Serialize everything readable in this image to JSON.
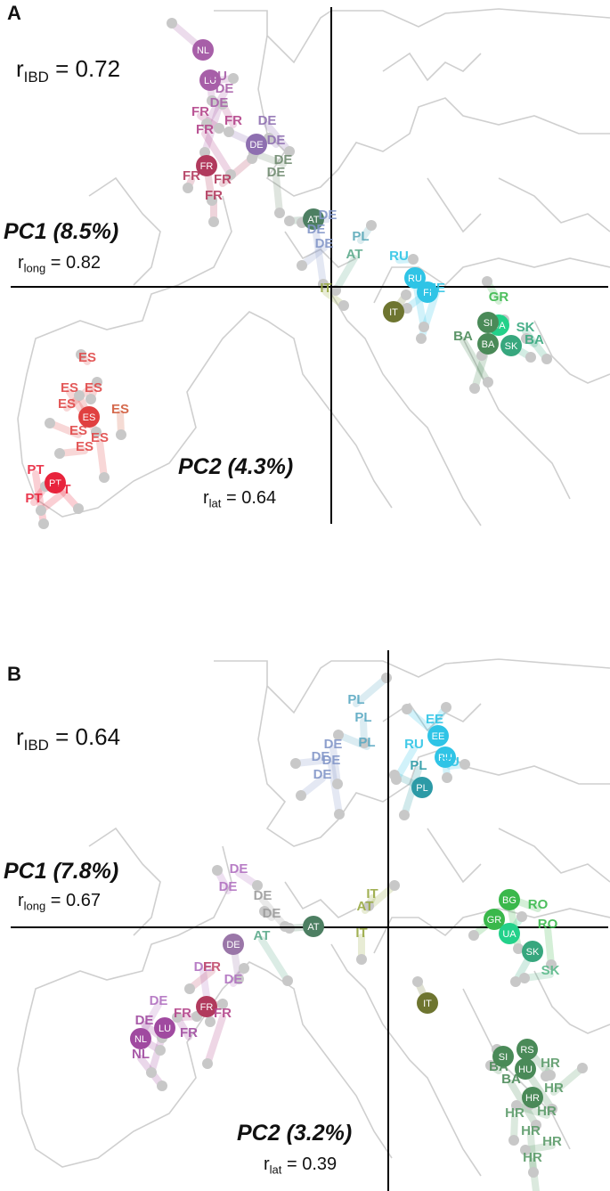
{
  "chart_data": [
    {
      "type": "scatter",
      "panel_label": "A",
      "r_ibd": "0.72",
      "pc1": "PC1 (8.5%)",
      "r_long": "0.82",
      "pc2": "PC2 (4.3%)",
      "r_lat": "0.64",
      "xlim": [
        0,
        685
      ],
      "ylim": [
        0,
        640
      ],
      "axis_origin": [
        372,
        322
      ],
      "points": [
        {
          "lab": "NL",
          "x": 228,
          "y": 56,
          "c": "#a75fa8",
          "big": true
        },
        {
          "lab": "LU",
          "x": 236,
          "y": 90,
          "c": "#a75fa8",
          "big": true
        },
        {
          "lab": "DE",
          "x": 288,
          "y": 162,
          "c": "#8e6fb0",
          "big": true
        },
        {
          "lab": "FR",
          "x": 232,
          "y": 186,
          "c": "#b13a5d",
          "big": true
        },
        {
          "lab": "AT",
          "x": 352,
          "y": 246,
          "c": "#4d7f62",
          "big": true
        },
        {
          "lab": "RU",
          "x": 466,
          "y": 312,
          "c": "#2fc4e6",
          "big": true
        },
        {
          "lab": "FI",
          "x": 480,
          "y": 328,
          "c": "#2fc4e6",
          "big": true
        },
        {
          "lab": "IT",
          "x": 442,
          "y": 350,
          "c": "#6e7530",
          "big": true
        },
        {
          "lab": "UA",
          "x": 560,
          "y": 365,
          "c": "#23d18a",
          "big": true
        },
        {
          "lab": "SI",
          "x": 548,
          "y": 362,
          "c": "#4a8a58",
          "big": true
        },
        {
          "lab": "BA",
          "x": 548,
          "y": 386,
          "c": "#4a8a58",
          "big": true
        },
        {
          "lab": "SK",
          "x": 574,
          "y": 388,
          "c": "#37a77e",
          "big": true
        },
        {
          "lab": "ES",
          "x": 100,
          "y": 468,
          "c": "#e04040",
          "big": true
        },
        {
          "lab": "PT",
          "x": 62,
          "y": 542,
          "c": "#e8243c",
          "big": true
        },
        {
          "lab": "ES",
          "x": 98,
          "y": 406,
          "c": "#e04848"
        },
        {
          "lab": "ES",
          "x": 78,
          "y": 440,
          "c": "#e04848"
        },
        {
          "lab": "ES",
          "x": 105,
          "y": 440,
          "c": "#e04848"
        },
        {
          "lab": "ES",
          "x": 75,
          "y": 458,
          "c": "#e04848"
        },
        {
          "lab": "ES",
          "x": 135,
          "y": 464,
          "c": "#d05a3a"
        },
        {
          "lab": "ES",
          "x": 88,
          "y": 488,
          "c": "#e04848"
        },
        {
          "lab": "ES",
          "x": 112,
          "y": 496,
          "c": "#e04848"
        },
        {
          "lab": "ES",
          "x": 95,
          "y": 506,
          "c": "#e04848"
        },
        {
          "lab": "PT",
          "x": 40,
          "y": 532,
          "c": "#e8243c"
        },
        {
          "lab": "PT",
          "x": 70,
          "y": 554,
          "c": "#e8243c"
        },
        {
          "lab": "PT",
          "x": 38,
          "y": 564,
          "c": "#e8243c"
        },
        {
          "lab": "DE",
          "x": 252,
          "y": 104,
          "c": "#a75fa8"
        },
        {
          "lab": "LU",
          "x": 245,
          "y": 90,
          "c": "#a75fa8"
        },
        {
          "lab": "DE",
          "x": 246,
          "y": 120,
          "c": "#a75fa8"
        },
        {
          "lab": "FR",
          "x": 225,
          "y": 130,
          "c": "#b3438a"
        },
        {
          "lab": "FR",
          "x": 262,
          "y": 140,
          "c": "#b3438a"
        },
        {
          "lab": "DE",
          "x": 300,
          "y": 140,
          "c": "#8e6fb0"
        },
        {
          "lab": "DE",
          "x": 310,
          "y": 162,
          "c": "#8e6fb0"
        },
        {
          "lab": "FR",
          "x": 230,
          "y": 150,
          "c": "#b3438a"
        },
        {
          "lab": "FR",
          "x": 215,
          "y": 202,
          "c": "#b13a5d"
        },
        {
          "lab": "FR",
          "x": 250,
          "y": 206,
          "c": "#b13a5d"
        },
        {
          "lab": "FR",
          "x": 240,
          "y": 224,
          "c": "#b13a5d"
        },
        {
          "lab": "DE",
          "x": 318,
          "y": 184,
          "c": "#6f8a6f"
        },
        {
          "lab": "DE",
          "x": 310,
          "y": 198,
          "c": "#6f8a6f"
        },
        {
          "lab": "DE",
          "x": 368,
          "y": 246,
          "c": "#8296c8"
        },
        {
          "lab": "DE",
          "x": 355,
          "y": 262,
          "c": "#8296c8"
        },
        {
          "lab": "DE",
          "x": 364,
          "y": 278,
          "c": "#8296c8"
        },
        {
          "lab": "PL",
          "x": 405,
          "y": 270,
          "c": "#5aa9b8"
        },
        {
          "lab": "AT",
          "x": 398,
          "y": 290,
          "c": "#5aa98a"
        },
        {
          "lab": "RU",
          "x": 448,
          "y": 292,
          "c": "#2fc4e6"
        },
        {
          "lab": "EE",
          "x": 490,
          "y": 328,
          "c": "#2fc4e6"
        },
        {
          "lab": "IT",
          "x": 366,
          "y": 328,
          "c": "#98a842"
        },
        {
          "lab": "GR",
          "x": 560,
          "y": 338,
          "c": "#3ab84b"
        },
        {
          "lab": "SK",
          "x": 590,
          "y": 372,
          "c": "#37a77e"
        },
        {
          "lab": "BA",
          "x": 600,
          "y": 386,
          "c": "#37a77e"
        },
        {
          "lab": "BA",
          "x": 520,
          "y": 382,
          "c": "#4a8a58"
        }
      ]
    },
    {
      "type": "scatter",
      "panel_label": "B",
      "r_ibd": "0.64",
      "pc1": "PC1 (7.8%)",
      "r_long": "0.67",
      "pc2": "PC2 (3.2%)",
      "r_lat": "0.39",
      "xlim": [
        0,
        685
      ],
      "ylim": [
        0,
        607
      ],
      "axis_origin": [
        436,
        311
      ],
      "points": [
        {
          "lab": "EE",
          "x": 492,
          "y": 96,
          "c": "#2fc4e6",
          "big": true
        },
        {
          "lab": "RU",
          "x": 500,
          "y": 120,
          "c": "#2fc4e6",
          "big": true
        },
        {
          "lab": "PL",
          "x": 474,
          "y": 154,
          "c": "#2c9aa6",
          "big": true
        },
        {
          "lab": "DE",
          "x": 262,
          "y": 330,
          "c": "#9a76a8",
          "big": true
        },
        {
          "lab": "AT",
          "x": 352,
          "y": 310,
          "c": "#4d7f62",
          "big": true
        },
        {
          "lab": "BG",
          "x": 572,
          "y": 280,
          "c": "#3ab84b",
          "big": true
        },
        {
          "lab": "GR",
          "x": 555,
          "y": 302,
          "c": "#3ab84b",
          "big": true
        },
        {
          "lab": "UA",
          "x": 572,
          "y": 318,
          "c": "#23d18a",
          "big": true
        },
        {
          "lab": "SK",
          "x": 598,
          "y": 338,
          "c": "#37a77e",
          "big": true
        },
        {
          "lab": "FR",
          "x": 232,
          "y": 400,
          "c": "#b13a5d",
          "big": true
        },
        {
          "lab": "LU",
          "x": 185,
          "y": 424,
          "c": "#a04aa0",
          "big": true
        },
        {
          "lab": "NL",
          "x": 158,
          "y": 436,
          "c": "#a04aa0",
          "big": true
        },
        {
          "lab": "IT",
          "x": 480,
          "y": 396,
          "c": "#6e7530",
          "big": true
        },
        {
          "lab": "RS",
          "x": 592,
          "y": 448,
          "c": "#4a8a58",
          "big": true
        },
        {
          "lab": "SI",
          "x": 565,
          "y": 456,
          "c": "#4a8a58",
          "big": true
        },
        {
          "lab": "HU",
          "x": 590,
          "y": 470,
          "c": "#4a8a58",
          "big": true
        },
        {
          "lab": "HR",
          "x": 598,
          "y": 502,
          "c": "#4a8a58",
          "big": true
        },
        {
          "lab": "PL",
          "x": 400,
          "y": 60,
          "c": "#5aa9c2"
        },
        {
          "lab": "PL",
          "x": 408,
          "y": 80,
          "c": "#5aa9c2"
        },
        {
          "lab": "PL",
          "x": 412,
          "y": 108,
          "c": "#5aa9c2"
        },
        {
          "lab": "DE",
          "x": 374,
          "y": 110,
          "c": "#8296c8"
        },
        {
          "lab": "DE",
          "x": 360,
          "y": 124,
          "c": "#8296c8"
        },
        {
          "lab": "DE",
          "x": 372,
          "y": 128,
          "c": "#8296c8"
        },
        {
          "lab": "DE",
          "x": 362,
          "y": 144,
          "c": "#8296c8"
        },
        {
          "lab": "EE",
          "x": 488,
          "y": 82,
          "c": "#2fc4e6"
        },
        {
          "lab": "RU",
          "x": 465,
          "y": 110,
          "c": "#2fc4e6"
        },
        {
          "lab": "RU",
          "x": 505,
          "y": 130,
          "c": "#2fc4e6"
        },
        {
          "lab": "PL",
          "x": 470,
          "y": 134,
          "c": "#2c9aa6"
        },
        {
          "lab": "DE",
          "x": 268,
          "y": 250,
          "c": "#b070c0"
        },
        {
          "lab": "DE",
          "x": 256,
          "y": 270,
          "c": "#b070c0"
        },
        {
          "lab": "DE",
          "x": 295,
          "y": 280,
          "c": "#9a9a9a"
        },
        {
          "lab": "DE",
          "x": 305,
          "y": 300,
          "c": "#9a9a9a"
        },
        {
          "lab": "AT",
          "x": 294,
          "y": 325,
          "c": "#5aa98a"
        },
        {
          "lab": "IT",
          "x": 418,
          "y": 278,
          "c": "#98a842"
        },
        {
          "lab": "AT",
          "x": 410,
          "y": 292,
          "c": "#98a842"
        },
        {
          "lab": "IT",
          "x": 406,
          "y": 322,
          "c": "#98a842"
        },
        {
          "lab": "RO",
          "x": 604,
          "y": 290,
          "c": "#3ab84b"
        },
        {
          "lab": "RO",
          "x": 615,
          "y": 312,
          "c": "#3ab84b"
        },
        {
          "lab": "SK",
          "x": 618,
          "y": 364,
          "c": "#5ab88a"
        },
        {
          "lab": "DE",
          "x": 228,
          "y": 360,
          "c": "#b070c0"
        },
        {
          "lab": "FR",
          "x": 238,
          "y": 360,
          "c": "#c04a6a"
        },
        {
          "lab": "DE",
          "x": 262,
          "y": 374,
          "c": "#b070c0"
        },
        {
          "lab": "DE",
          "x": 178,
          "y": 398,
          "c": "#b070c0"
        },
        {
          "lab": "FR",
          "x": 205,
          "y": 412,
          "c": "#b3438a"
        },
        {
          "lab": "FR",
          "x": 250,
          "y": 412,
          "c": "#b3438a"
        },
        {
          "lab": "DE",
          "x": 162,
          "y": 420,
          "c": "#a04aa0"
        },
        {
          "lab": "FR",
          "x": 212,
          "y": 434,
          "c": "#a04aa0"
        },
        {
          "lab": "NL",
          "x": 158,
          "y": 458,
          "c": "#a04aa0"
        },
        {
          "lab": "BA",
          "x": 560,
          "y": 472,
          "c": "#4a8a58"
        },
        {
          "lab": "BA",
          "x": 574,
          "y": 486,
          "c": "#4a8a58"
        },
        {
          "lab": "HR",
          "x": 618,
          "y": 468,
          "c": "#5a9a68"
        },
        {
          "lab": "HR",
          "x": 622,
          "y": 496,
          "c": "#5a9a68"
        },
        {
          "lab": "HR",
          "x": 578,
          "y": 524,
          "c": "#5a9a68"
        },
        {
          "lab": "HR",
          "x": 614,
          "y": 522,
          "c": "#5a9a68"
        },
        {
          "lab": "HR",
          "x": 596,
          "y": 544,
          "c": "#5a9a68"
        },
        {
          "lab": "HR",
          "x": 620,
          "y": 556,
          "c": "#5a9a68"
        },
        {
          "lab": "HR",
          "x": 598,
          "y": 574,
          "c": "#5a9a68"
        }
      ]
    }
  ]
}
